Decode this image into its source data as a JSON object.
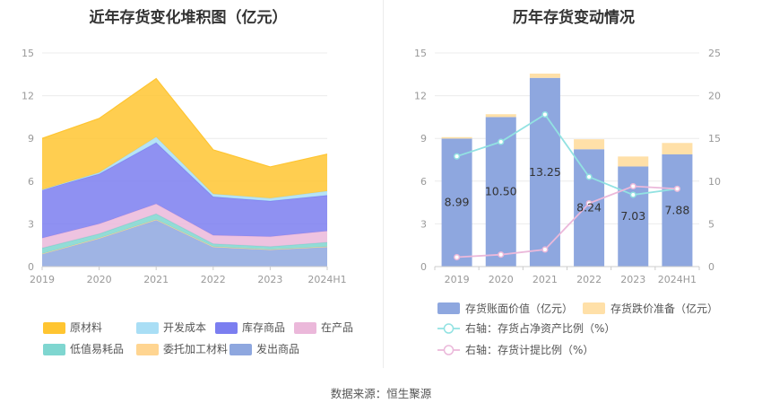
{
  "colors": {
    "raw": "#FFC531",
    "dev": "#A9DEF5",
    "stock": "#7B7EF0",
    "wip": "#EBB8DA",
    "lowvalue": "#7FD6D0",
    "outsourced": "#FFD591",
    "shipped": "#8EA7DF",
    "book_bar": "#8EA7DF",
    "reserve_bar": "#FFE0A8",
    "ratio_line": "#92E2E2",
    "provision_line": "#EBB8DA"
  },
  "left_title": "近年存货变化堆积图（亿元）",
  "right_title": "历年存货变动情况",
  "footer": "数据来源：恒生聚源",
  "chart_data": [
    {
      "type": "area",
      "stacked": true,
      "title": "近年存货变化堆积图（亿元）",
      "categories": [
        "2019",
        "2020",
        "2021",
        "2022",
        "2023",
        "2024H1"
      ],
      "ylim": [
        0,
        15
      ],
      "yticks": [
        0,
        3,
        6,
        9,
        12,
        15
      ],
      "grid": true,
      "legend_position": "bottom",
      "series": [
        {
          "name": "发出商品",
          "color_key": "shipped",
          "values": [
            0.9,
            2.0,
            3.3,
            1.4,
            1.2,
            1.4
          ]
        },
        {
          "name": "委托加工材料",
          "color_key": "outsourced",
          "values": [
            0.0,
            0.0,
            0.0,
            0.0,
            0.0,
            0.0
          ]
        },
        {
          "name": "低值易耗品",
          "color_key": "lowvalue",
          "values": [
            0.4,
            0.3,
            0.4,
            0.2,
            0.2,
            0.3
          ]
        },
        {
          "name": "在产品",
          "color_key": "wip",
          "values": [
            0.7,
            0.7,
            0.7,
            0.6,
            0.7,
            0.8
          ]
        },
        {
          "name": "库存商品",
          "color_key": "stock",
          "values": [
            3.4,
            3.5,
            4.3,
            2.7,
            2.5,
            2.5
          ]
        },
        {
          "name": "开发成本",
          "color_key": "dev",
          "values": [
            0.0,
            0.1,
            0.4,
            0.2,
            0.2,
            0.3
          ]
        },
        {
          "name": "原材料",
          "color_key": "raw",
          "values": [
            3.6,
            3.8,
            4.1,
            3.1,
            2.2,
            2.6
          ]
        }
      ],
      "legend": [
        {
          "name": "原材料",
          "color_key": "raw"
        },
        {
          "name": "开发成本",
          "color_key": "dev"
        },
        {
          "name": "库存商品",
          "color_key": "stock"
        },
        {
          "name": "在产品",
          "color_key": "wip"
        },
        {
          "name": "低值易耗品",
          "color_key": "lowvalue"
        },
        {
          "name": "委托加工材料",
          "color_key": "outsourced"
        },
        {
          "name": "发出商品",
          "color_key": "shipped"
        }
      ]
    },
    {
      "type": "bar",
      "stacked": true,
      "title": "历年存货变动情况",
      "categories": [
        "2019",
        "2020",
        "2021",
        "2022",
        "2023",
        "2024H1"
      ],
      "ylim": [
        0,
        15
      ],
      "yticks": [
        0,
        3,
        6,
        9,
        12,
        15
      ],
      "y2lim": [
        0,
        25
      ],
      "y2ticks": [
        0,
        5,
        10,
        15,
        20,
        25
      ],
      "grid": true,
      "legend_position": "bottom",
      "series": [
        {
          "name": "存货账面价值（亿元）",
          "color_key": "book_bar",
          "values": [
            8.99,
            10.5,
            13.25,
            8.24,
            7.03,
            7.88
          ],
          "labels": [
            "8.99",
            "10.50",
            "13.25",
            "8.24",
            "7.03",
            "7.88"
          ]
        },
        {
          "name": "存货跌价准备（亿元）",
          "color_key": "reserve_bar",
          "values": [
            0.1,
            0.2,
            0.3,
            0.7,
            0.7,
            0.8
          ]
        }
      ],
      "lines": [
        {
          "name": "右轴：存货占净资产比例（%）",
          "color_key": "ratio_line",
          "axis": "right",
          "values": [
            12.9,
            14.6,
            17.8,
            10.5,
            8.4,
            9.1
          ]
        },
        {
          "name": "右轴：存货计提比例（%）",
          "color_key": "provision_line",
          "axis": "right",
          "values": [
            1.1,
            1.4,
            2.0,
            7.4,
            9.4,
            9.1
          ]
        }
      ]
    }
  ]
}
